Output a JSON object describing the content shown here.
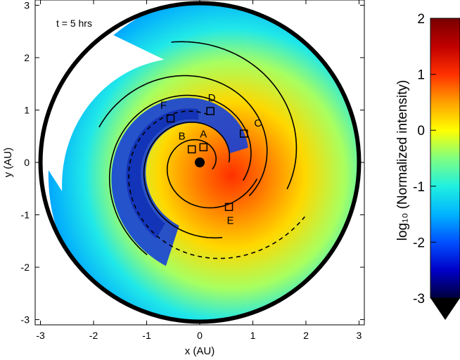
{
  "chart_data": {
    "type": "heatmap",
    "annotation": "t = 5 hrs",
    "xlabel": "x (AU)",
    "ylabel": "y (AU)",
    "xlim": [
      -3.1,
      3.1
    ],
    "ylim": [
      -3.1,
      3.1
    ],
    "xticks": [
      "-3",
      "-2",
      "-1",
      "0",
      "1",
      "2",
      "3"
    ],
    "yticks": [
      "-3",
      "-2",
      "-1",
      "0",
      "1",
      "2",
      "3"
    ],
    "grid": false,
    "boundary_radius": 3.0,
    "central_body": {
      "x": 0.0,
      "y": 0.0
    },
    "markers": [
      {
        "label": "A",
        "x": 0.07,
        "y": 0.29
      },
      {
        "label": "B",
        "x": -0.15,
        "y": 0.25
      },
      {
        "label": "C",
        "x": 0.83,
        "y": 0.55
      },
      {
        "label": "D",
        "x": 0.2,
        "y": 0.98
      },
      {
        "label": "E",
        "x": 0.55,
        "y": -0.85
      },
      {
        "label": "F",
        "x": -0.55,
        "y": 0.84
      }
    ],
    "colorbar": {
      "label": "log₁₀ (Normalized intensity)",
      "range": [
        -3,
        2
      ],
      "ticks": [
        "2",
        "1",
        "0",
        "-1",
        "-2",
        "-3"
      ],
      "colormap": [
        "#00003c",
        "#0000c8",
        "#0050ff",
        "#00b4ff",
        "#20f0e0",
        "#80ff80",
        "#ffff00",
        "#ffa000",
        "#ff3000",
        "#c00000",
        "#780000"
      ]
    }
  }
}
